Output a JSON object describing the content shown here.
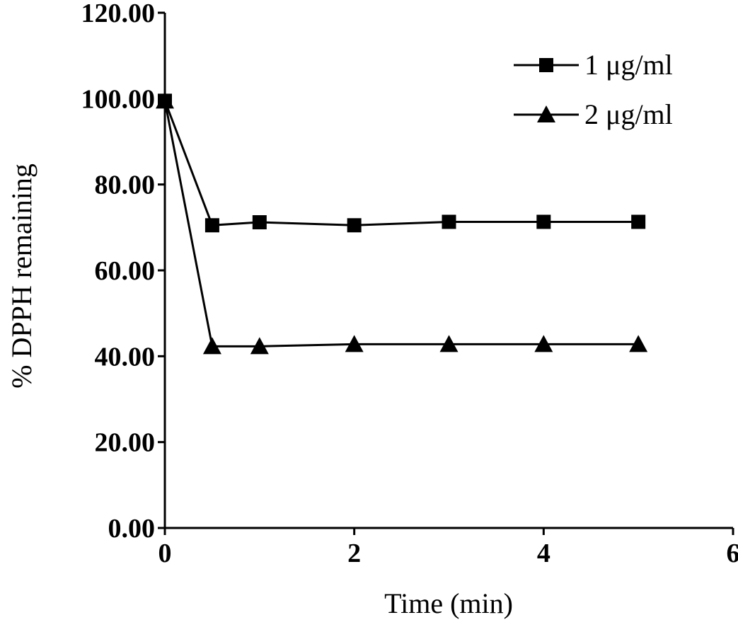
{
  "chart_data": {
    "type": "line",
    "title": "",
    "xlabel": "Time (min)",
    "ylabel": "% DPPH remaining",
    "xlim": [
      0,
      6
    ],
    "ylim": [
      0,
      120
    ],
    "x_ticks": [
      0,
      2,
      4,
      6
    ],
    "x_tick_labels": [
      "0",
      "2",
      "4",
      "6"
    ],
    "y_ticks": [
      0,
      20,
      40,
      60,
      80,
      100,
      120
    ],
    "y_tick_labels": [
      "0.00",
      "20.00",
      "40.00",
      "60.00",
      "80.00",
      "100.00",
      "120.00"
    ],
    "grid": false,
    "legend_position": "top-right",
    "series": [
      {
        "name": "1 μg/ml",
        "marker": "square",
        "color": "#000000",
        "x": [
          0,
          0.5,
          1,
          2,
          3,
          4,
          5
        ],
        "y": [
          99.5,
          70.5,
          71.2,
          70.5,
          71.3,
          71.3,
          71.3
        ]
      },
      {
        "name": "2 μg/ml",
        "marker": "triangle",
        "color": "#000000",
        "x": [
          0,
          0.5,
          1,
          2,
          3,
          4,
          5
        ],
        "y": [
          99.5,
          42.3,
          42.3,
          42.8,
          42.8,
          42.8,
          42.8
        ]
      }
    ]
  }
}
